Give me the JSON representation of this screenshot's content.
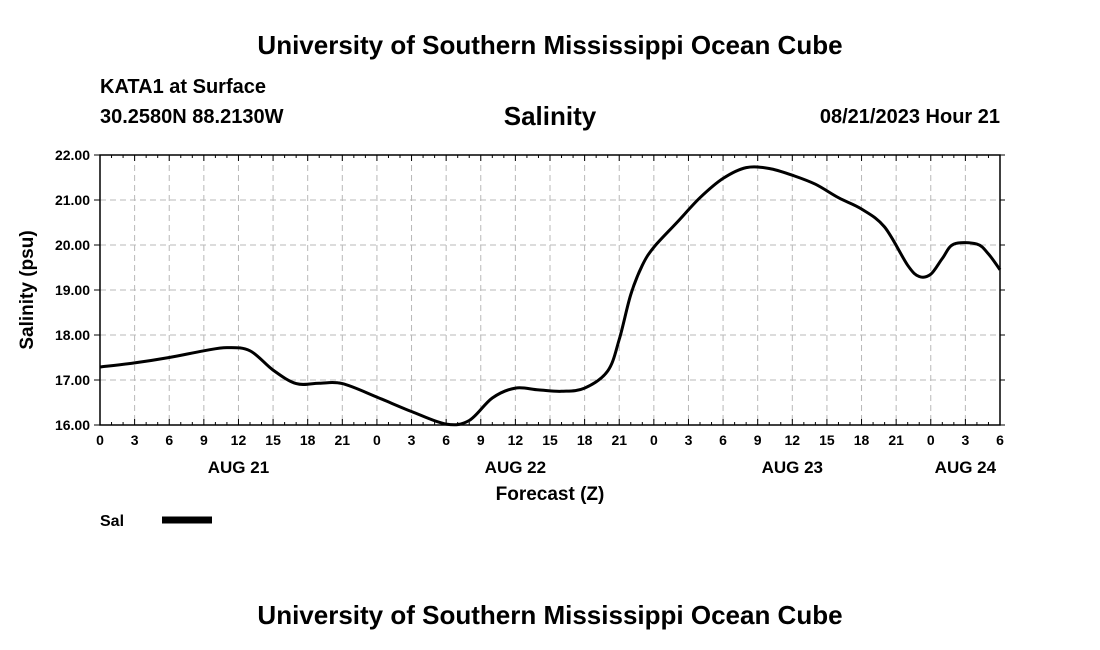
{
  "header": {
    "title": "University of Southern Mississippi Ocean Cube",
    "station": "KATA1 at Surface",
    "coordinates": "30.2580N  88.2130W",
    "timestamp": "08/21/2023 Hour 21"
  },
  "footer": {
    "title": "University of Southern Mississippi Ocean Cube"
  },
  "chart_data": {
    "type": "line",
    "title": "Salinity",
    "xlabel": "Forecast (Z)",
    "ylabel": "Salinity (psu)",
    "ylim": [
      16,
      22
    ],
    "xlim": [
      0,
      78
    ],
    "grid": true,
    "x_tick_labels": [
      "0",
      "3",
      "6",
      "9",
      "12",
      "15",
      "18",
      "21",
      "0",
      "3",
      "6",
      "9",
      "12",
      "15",
      "18",
      "21",
      "0",
      "3",
      "6",
      "9",
      "12",
      "15",
      "18",
      "21",
      "0",
      "3",
      "6"
    ],
    "date_labels": [
      {
        "label": "AUG 21",
        "x": 12
      },
      {
        "label": "AUG 22",
        "x": 36
      },
      {
        "label": "AUG 23",
        "x": 60
      },
      {
        "label": "AUG 24",
        "x": 75
      }
    ],
    "y_ticks": [
      "16.00",
      "17.00",
      "18.00",
      "19.00",
      "20.00",
      "21.00",
      "22.00"
    ],
    "legend": {
      "label": "Sal",
      "position": "bottom-left"
    },
    "series": [
      {
        "name": "Sal",
        "x": [
          0,
          3,
          6,
          9,
          11,
          13,
          15,
          17,
          19,
          21,
          24,
          27,
          30,
          32,
          34,
          36,
          38,
          40,
          42,
          44,
          45,
          46,
          47,
          48,
          50,
          52,
          54,
          56,
          58,
          60,
          62,
          64,
          66,
          68,
          70,
          71,
          72,
          73,
          74,
          76,
          77,
          78
        ],
        "values": [
          17.29,
          17.38,
          17.5,
          17.65,
          17.72,
          17.65,
          17.22,
          16.92,
          16.93,
          16.92,
          16.62,
          16.3,
          16.02,
          16.1,
          16.6,
          16.82,
          16.78,
          16.75,
          16.82,
          17.2,
          17.9,
          18.9,
          19.55,
          19.95,
          20.5,
          21.05,
          21.48,
          21.72,
          21.7,
          21.55,
          21.35,
          21.05,
          20.8,
          20.4,
          19.55,
          19.3,
          19.35,
          19.7,
          20.02,
          20.02,
          19.8,
          19.45
        ]
      }
    ]
  }
}
